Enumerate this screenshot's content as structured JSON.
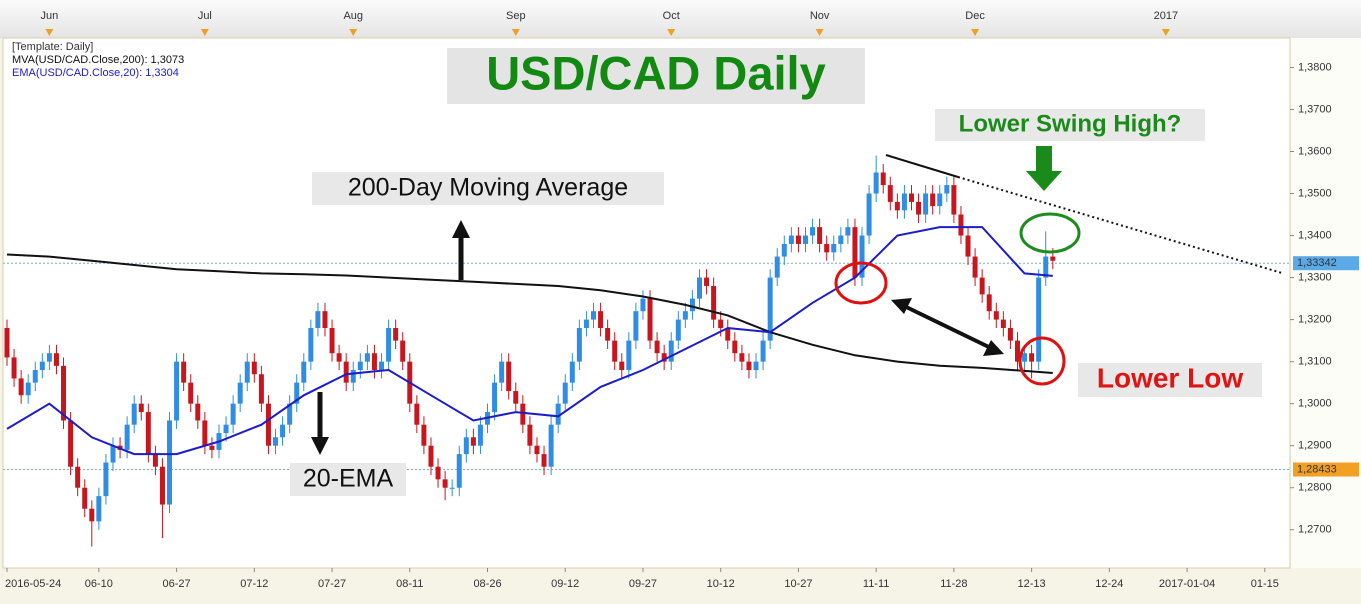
{
  "chart_data": {
    "type": "candlestick",
    "title": "USD/CAD Daily",
    "subtitle": "[Template: Daily]",
    "up_color": "#2f8de4",
    "down_color": "#c8161e",
    "x": [
      "2016-05-24",
      "2016-05-25",
      "2016-05-26",
      "2016-05-27",
      "2016-05-30",
      "2016-05-31",
      "2016-06-01",
      "2016-06-02",
      "2016-06-03",
      "2016-06-06",
      "2016-06-07",
      "2016-06-08",
      "2016-06-09",
      "2016-06-10",
      "2016-06-13",
      "2016-06-14",
      "2016-06-15",
      "2016-06-16",
      "2016-06-17",
      "2016-06-20",
      "2016-06-21",
      "2016-06-22",
      "2016-06-23",
      "2016-06-24",
      "2016-06-27",
      "2016-06-28",
      "2016-06-29",
      "2016-06-30",
      "2016-07-01",
      "2016-07-04",
      "2016-07-05",
      "2016-07-06",
      "2016-07-07",
      "2016-07-08",
      "2016-07-11",
      "2016-07-12",
      "2016-07-13",
      "2016-07-14",
      "2016-07-15",
      "2016-07-18",
      "2016-07-19",
      "2016-07-20",
      "2016-07-21",
      "2016-07-22",
      "2016-07-25",
      "2016-07-26",
      "2016-07-27",
      "2016-07-28",
      "2016-07-29",
      "2016-08-01",
      "2016-08-02",
      "2016-08-03",
      "2016-08-04",
      "2016-08-05",
      "2016-08-08",
      "2016-08-09",
      "2016-08-10",
      "2016-08-11",
      "2016-08-12",
      "2016-08-15",
      "2016-08-16",
      "2016-08-17",
      "2016-08-18",
      "2016-08-19",
      "2016-08-22",
      "2016-08-23",
      "2016-08-24",
      "2016-08-25",
      "2016-08-26",
      "2016-08-29",
      "2016-08-30",
      "2016-08-31",
      "2016-09-01",
      "2016-09-02",
      "2016-09-05",
      "2016-09-06",
      "2016-09-07",
      "2016-09-08",
      "2016-09-09",
      "2016-09-12",
      "2016-09-13",
      "2016-09-14",
      "2016-09-15",
      "2016-09-16",
      "2016-09-19",
      "2016-09-20",
      "2016-09-21",
      "2016-09-22",
      "2016-09-23",
      "2016-09-26",
      "2016-09-27",
      "2016-09-28",
      "2016-09-29",
      "2016-09-30",
      "2016-10-03",
      "2016-10-04",
      "2016-10-05",
      "2016-10-06",
      "2016-10-07",
      "2016-10-10",
      "2016-10-11",
      "2016-10-12",
      "2016-10-13",
      "2016-10-14",
      "2016-10-17",
      "2016-10-18",
      "2016-10-19",
      "2016-10-20",
      "2016-10-21",
      "2016-10-24",
      "2016-10-25",
      "2016-10-26",
      "2016-10-27",
      "2016-10-28",
      "2016-10-31",
      "2016-11-01",
      "2016-11-02",
      "2016-11-03",
      "2016-11-04",
      "2016-11-07",
      "2016-11-08",
      "2016-11-09",
      "2016-11-10",
      "2016-11-11",
      "2016-11-14",
      "2016-11-15",
      "2016-11-16",
      "2016-11-17",
      "2016-11-18",
      "2016-11-21",
      "2016-11-22",
      "2016-11-23",
      "2016-11-24",
      "2016-11-25",
      "2016-11-28",
      "2016-11-29",
      "2016-11-30",
      "2016-12-01",
      "2016-12-02",
      "2016-12-05",
      "2016-12-06",
      "2016-12-07",
      "2016-12-08",
      "2016-12-09",
      "2016-12-12",
      "2016-12-13",
      "2016-12-14",
      "2016-12-15",
      "2016-12-16"
    ],
    "open": [
      1.318,
      1.311,
      1.306,
      1.302,
      1.305,
      1.308,
      1.31,
      1.312,
      1.309,
      1.296,
      1.285,
      1.28,
      1.275,
      1.272,
      1.278,
      1.286,
      1.29,
      1.289,
      1.295,
      1.3,
      1.298,
      1.288,
      1.285,
      1.276,
      1.296,
      1.31,
      1.305,
      1.3,
      1.296,
      1.29,
      1.289,
      1.293,
      1.295,
      1.3,
      1.305,
      1.31,
      1.307,
      1.3,
      1.29,
      1.292,
      1.295,
      1.3,
      1.305,
      1.31,
      1.318,
      1.322,
      1.318,
      1.312,
      1.31,
      1.305,
      1.308,
      1.31,
      1.312,
      1.308,
      1.31,
      1.318,
      1.315,
      1.31,
      1.3,
      1.295,
      1.29,
      1.285,
      1.282,
      1.28,
      1.28,
      1.288,
      1.292,
      1.29,
      1.295,
      1.298,
      1.305,
      1.31,
      1.303,
      1.3,
      1.295,
      1.29,
      1.288,
      1.285,
      1.295,
      1.3,
      1.305,
      1.31,
      1.318,
      1.32,
      1.322,
      1.318,
      1.315,
      1.31,
      1.308,
      1.315,
      1.322,
      1.325,
      1.315,
      1.312,
      1.31,
      1.315,
      1.32,
      1.322,
      1.325,
      1.33,
      1.328,
      1.32,
      1.318,
      1.315,
      1.312,
      1.31,
      1.308,
      1.31,
      1.315,
      1.33,
      1.335,
      1.338,
      1.34,
      1.338,
      1.34,
      1.342,
      1.338,
      1.336,
      1.338,
      1.34,
      1.342,
      1.33,
      1.34,
      1.35,
      1.355,
      1.352,
      1.348,
      1.346,
      1.35,
      1.348,
      1.345,
      1.35,
      1.347,
      1.35,
      1.352,
      1.345,
      1.34,
      1.335,
      1.33,
      1.326,
      1.322,
      1.32,
      1.318,
      1.315,
      1.31,
      1.312,
      1.31,
      1.33,
      1.335
    ],
    "high": [
      1.32,
      1.313,
      1.308,
      1.307,
      1.31,
      1.312,
      1.314,
      1.314,
      1.311,
      1.298,
      1.287,
      1.282,
      1.277,
      1.28,
      1.288,
      1.292,
      1.292,
      1.297,
      1.302,
      1.302,
      1.3,
      1.29,
      1.287,
      1.298,
      1.312,
      1.312,
      1.307,
      1.302,
      1.298,
      1.292,
      1.295,
      1.297,
      1.302,
      1.307,
      1.312,
      1.312,
      1.309,
      1.302,
      1.294,
      1.297,
      1.302,
      1.307,
      1.312,
      1.32,
      1.324,
      1.324,
      1.32,
      1.314,
      1.312,
      1.31,
      1.312,
      1.314,
      1.314,
      1.312,
      1.32,
      1.32,
      1.317,
      1.312,
      1.302,
      1.297,
      1.292,
      1.287,
      1.284,
      1.282,
      1.29,
      1.294,
      1.294,
      1.297,
      1.3,
      1.307,
      1.312,
      1.312,
      1.305,
      1.302,
      1.297,
      1.292,
      1.29,
      1.297,
      1.302,
      1.307,
      1.312,
      1.32,
      1.322,
      1.324,
      1.324,
      1.32,
      1.317,
      1.312,
      1.317,
      1.324,
      1.327,
      1.327,
      1.317,
      1.314,
      1.317,
      1.322,
      1.324,
      1.327,
      1.332,
      1.332,
      1.33,
      1.322,
      1.32,
      1.317,
      1.314,
      1.312,
      1.312,
      1.317,
      1.332,
      1.337,
      1.34,
      1.342,
      1.342,
      1.342,
      1.344,
      1.344,
      1.34,
      1.34,
      1.342,
      1.344,
      1.344,
      1.342,
      1.352,
      1.359,
      1.357,
      1.354,
      1.35,
      1.352,
      1.352,
      1.35,
      1.352,
      1.352,
      1.352,
      1.354,
      1.354,
      1.347,
      1.342,
      1.337,
      1.332,
      1.328,
      1.324,
      1.322,
      1.32,
      1.317,
      1.314,
      1.314,
      1.332,
      1.341,
      1.337
    ],
    "low": [
      1.309,
      1.304,
      1.3,
      1.3,
      1.303,
      1.306,
      1.308,
      1.307,
      1.294,
      1.283,
      1.278,
      1.273,
      1.266,
      1.27,
      1.276,
      1.284,
      1.287,
      1.287,
      1.293,
      1.296,
      1.286,
      1.283,
      1.268,
      1.274,
      1.294,
      1.303,
      1.298,
      1.294,
      1.288,
      1.287,
      1.287,
      1.291,
      1.293,
      1.298,
      1.303,
      1.305,
      1.298,
      1.288,
      1.288,
      1.29,
      1.293,
      1.298,
      1.303,
      1.308,
      1.316,
      1.316,
      1.31,
      1.308,
      1.303,
      1.303,
      1.306,
      1.308,
      1.306,
      1.306,
      1.308,
      1.313,
      1.308,
      1.298,
      1.293,
      1.288,
      1.283,
      1.28,
      1.277,
      1.278,
      1.278,
      1.286,
      1.288,
      1.288,
      1.293,
      1.296,
      1.303,
      1.301,
      1.298,
      1.293,
      1.288,
      1.286,
      1.283,
      1.283,
      1.293,
      1.298,
      1.303,
      1.308,
      1.316,
      1.318,
      1.316,
      1.313,
      1.308,
      1.306,
      1.306,
      1.313,
      1.32,
      1.313,
      1.31,
      1.308,
      1.308,
      1.313,
      1.318,
      1.32,
      1.323,
      1.326,
      1.318,
      1.316,
      1.313,
      1.31,
      1.308,
      1.306,
      1.306,
      1.308,
      1.313,
      1.328,
      1.333,
      1.336,
      1.336,
      1.336,
      1.338,
      1.336,
      1.334,
      1.334,
      1.336,
      1.338,
      1.328,
      1.328,
      1.338,
      1.348,
      1.35,
      1.346,
      1.344,
      1.344,
      1.346,
      1.343,
      1.343,
      1.345,
      1.345,
      1.348,
      1.343,
      1.338,
      1.333,
      1.328,
      1.324,
      1.32,
      1.318,
      1.316,
      1.313,
      1.308,
      1.308,
      1.306,
      1.308,
      1.328,
      1.332
    ],
    "close": [
      1.311,
      1.306,
      1.302,
      1.305,
      1.308,
      1.31,
      1.312,
      1.309,
      1.296,
      1.285,
      1.28,
      1.275,
      1.272,
      1.278,
      1.286,
      1.29,
      1.289,
      1.295,
      1.3,
      1.298,
      1.288,
      1.285,
      1.276,
      1.296,
      1.31,
      1.305,
      1.3,
      1.296,
      1.29,
      1.289,
      1.293,
      1.295,
      1.3,
      1.305,
      1.31,
      1.307,
      1.3,
      1.29,
      1.292,
      1.295,
      1.3,
      1.305,
      1.31,
      1.318,
      1.322,
      1.318,
      1.312,
      1.31,
      1.305,
      1.308,
      1.31,
      1.312,
      1.308,
      1.31,
      1.318,
      1.315,
      1.31,
      1.3,
      1.295,
      1.29,
      1.285,
      1.282,
      1.28,
      1.28,
      1.288,
      1.292,
      1.29,
      1.295,
      1.298,
      1.305,
      1.31,
      1.303,
      1.3,
      1.295,
      1.29,
      1.288,
      1.285,
      1.295,
      1.3,
      1.305,
      1.31,
      1.318,
      1.32,
      1.322,
      1.318,
      1.315,
      1.31,
      1.308,
      1.315,
      1.322,
      1.325,
      1.315,
      1.312,
      1.31,
      1.315,
      1.32,
      1.322,
      1.325,
      1.33,
      1.328,
      1.32,
      1.318,
      1.315,
      1.312,
      1.31,
      1.308,
      1.31,
      1.315,
      1.33,
      1.335,
      1.338,
      1.34,
      1.338,
      1.34,
      1.342,
      1.338,
      1.336,
      1.338,
      1.34,
      1.342,
      1.33,
      1.34,
      1.35,
      1.355,
      1.352,
      1.348,
      1.346,
      1.35,
      1.348,
      1.345,
      1.35,
      1.347,
      1.35,
      1.352,
      1.345,
      1.34,
      1.335,
      1.33,
      1.326,
      1.322,
      1.32,
      1.318,
      1.315,
      1.31,
      1.312,
      1.31,
      1.33,
      1.335,
      1.334
    ],
    "series": [
      {
        "name": "MVA(USD/CAD.Close,200): 1,3073",
        "color": "#111111",
        "x": [
          "2016-05-24",
          "2016-06-01",
          "2016-06-09",
          "2016-06-17",
          "2016-06-27",
          "2016-07-05",
          "2016-07-13",
          "2016-07-21",
          "2016-07-29",
          "2016-08-08",
          "2016-08-16",
          "2016-08-24",
          "2016-09-01",
          "2016-09-09",
          "2016-09-19",
          "2016-09-27",
          "2016-10-05",
          "2016-10-13",
          "2016-10-21",
          "2016-10-31",
          "2016-11-08",
          "2016-11-16",
          "2016-11-24",
          "2016-12-02",
          "2016-12-12",
          "2016-12-16"
        ],
        "values": [
          1.3355,
          1.335,
          1.334,
          1.333,
          1.332,
          1.3315,
          1.331,
          1.3308,
          1.3305,
          1.33,
          1.3295,
          1.329,
          1.3285,
          1.328,
          1.327,
          1.3255,
          1.3235,
          1.321,
          1.317,
          1.314,
          1.3115,
          1.31,
          1.309,
          1.3085,
          1.3078,
          1.3073
        ]
      },
      {
        "name": "EMA(USD/CAD.Close,20): 1,3304",
        "color": "#1c1cc8",
        "x": [
          "2016-05-24",
          "2016-06-01",
          "2016-06-09",
          "2016-06-17",
          "2016-06-27",
          "2016-07-05",
          "2016-07-13",
          "2016-07-21",
          "2016-07-29",
          "2016-08-08",
          "2016-08-16",
          "2016-08-24",
          "2016-09-01",
          "2016-09-09",
          "2016-09-19",
          "2016-09-27",
          "2016-10-05",
          "2016-10-13",
          "2016-10-21",
          "2016-10-31",
          "2016-11-08",
          "2016-11-16",
          "2016-11-24",
          "2016-12-02",
          "2016-12-12",
          "2016-12-16"
        ],
        "values": [
          1.294,
          1.3,
          1.292,
          1.288,
          1.288,
          1.291,
          1.295,
          1.302,
          1.307,
          1.308,
          1.302,
          1.296,
          1.298,
          1.297,
          1.304,
          1.308,
          1.313,
          1.318,
          1.317,
          1.324,
          1.33,
          1.34,
          1.342,
          1.342,
          1.331,
          1.3304
        ]
      }
    ],
    "xlim": [
      "2016-05-24",
      "2017-01-18"
    ],
    "xticks": [
      "2016-05-24",
      {
        "value": "2016-06-10",
        "label": "06-10"
      },
      {
        "value": "2016-06-27",
        "label": "06-27"
      },
      {
        "value": "2016-07-12",
        "label": "07-12"
      },
      {
        "value": "2016-07-27",
        "label": "07-27"
      },
      {
        "value": "2016-08-11",
        "label": "08-11"
      },
      {
        "value": "2016-08-26",
        "label": "08-26"
      },
      {
        "value": "2016-09-12",
        "label": "09-12"
      },
      {
        "value": "2016-09-27",
        "label": "09-27"
      },
      {
        "value": "2016-10-12",
        "label": "10-12"
      },
      {
        "value": "2016-10-27",
        "label": "10-27"
      },
      {
        "value": "2016-11-11",
        "label": "11-11"
      },
      {
        "value": "2016-11-28",
        "label": "11-28"
      },
      {
        "value": "2016-12-13",
        "label": "12-13"
      },
      {
        "value": "2016-12-24",
        "label": "12-24"
      },
      "2017-01-04",
      {
        "value": "2017-01-15",
        "label": "01-15"
      }
    ],
    "x2ticks": [
      {
        "value": "2016-06-01",
        "label": "Jun"
      },
      {
        "value": "2016-07-01",
        "label": "Jul"
      },
      {
        "value": "2016-08-01",
        "label": "Aug"
      },
      {
        "value": "2016-09-01",
        "label": "Sep"
      },
      {
        "value": "2016-10-01",
        "label": "Oct"
      },
      {
        "value": "2016-11-01",
        "label": "Nov"
      },
      {
        "value": "2016-12-01",
        "label": "Dec"
      },
      {
        "value": "2017-01-01",
        "label": "2017"
      }
    ],
    "ylim": [
      1.2609,
      1.387
    ],
    "yticks": [
      {
        "value": 1.38,
        "label": "1,3800"
      },
      {
        "value": 1.37,
        "label": "1,3700"
      },
      {
        "value": 1.36,
        "label": "1,3600"
      },
      {
        "value": 1.35,
        "label": "1,3500"
      },
      {
        "value": 1.34,
        "label": "1,3400"
      },
      {
        "value": 1.33,
        "label": "1,3300"
      },
      {
        "value": 1.32,
        "label": "1,3200"
      },
      {
        "value": 1.31,
        "label": "1,3100"
      },
      {
        "value": 1.3,
        "label": "1,3000"
      },
      {
        "value": 1.29,
        "label": "1,2900"
      },
      {
        "value": 1.28,
        "label": "1,2800"
      },
      {
        "value": 1.27,
        "label": "1,2700"
      }
    ],
    "price_markers": [
      {
        "value": 1.33342,
        "label": "1,33342",
        "color": "#5aaae8"
      },
      {
        "value": 1.28433,
        "label": "1,28433",
        "color": "#f2a024"
      }
    ],
    "annotations": [
      "200-Day Moving Average",
      "20-EMA",
      "Lower Swing High?",
      "Lower Low"
    ]
  }
}
